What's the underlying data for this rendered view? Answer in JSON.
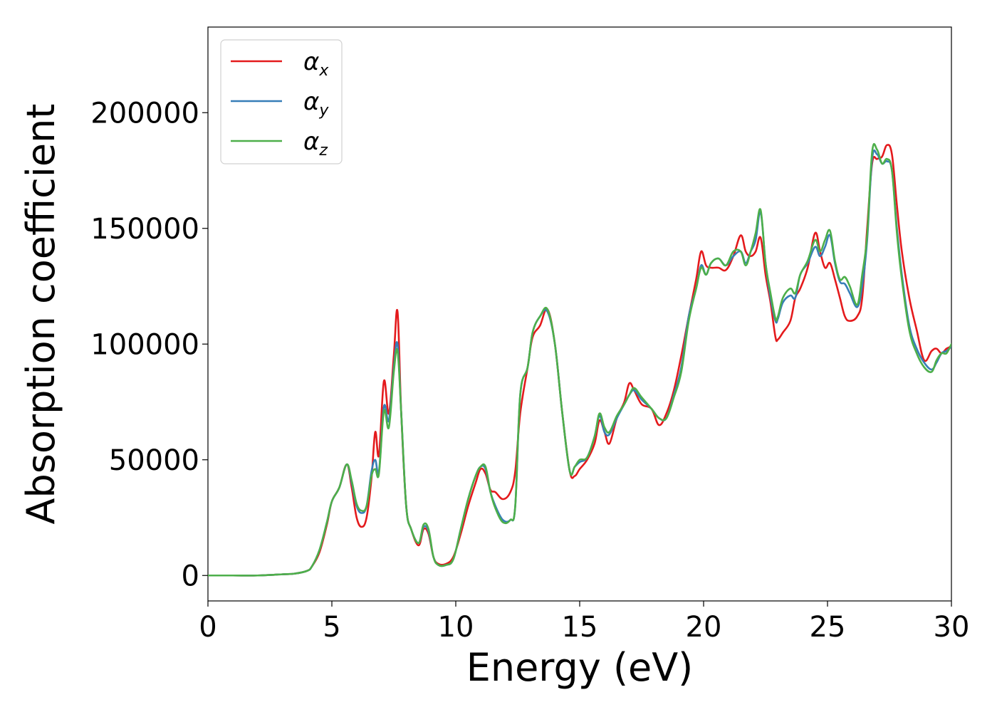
{
  "chart_data": {
    "type": "line",
    "title": "",
    "xlabel": "Energy (eV)",
    "ylabel": "Absorption coefficient",
    "xlim": [
      0,
      30
    ],
    "ylim": [
      -11000,
      237000
    ],
    "xticks": [
      0,
      5,
      10,
      15,
      20,
      25,
      30
    ],
    "xtick_labels": [
      "0",
      "5",
      "10",
      "15",
      "20",
      "25",
      "30"
    ],
    "yticks": [
      0,
      50000,
      100000,
      150000,
      200000
    ],
    "ytick_labels": [
      "0",
      "50000",
      "100000",
      "150000",
      "200000"
    ],
    "grid": false,
    "legend_position": "top-left",
    "series": [
      {
        "name": "αx",
        "symbol": "α",
        "subscript": "x",
        "color": "#e41a1c",
        "x": [
          0,
          1,
          2,
          3,
          3.5,
          4,
          4.2,
          4.5,
          4.8,
          5.0,
          5.3,
          5.6,
          5.8,
          6.0,
          6.2,
          6.4,
          6.6,
          6.75,
          6.9,
          7.1,
          7.3,
          7.5,
          7.65,
          7.8,
          8.0,
          8.2,
          8.5,
          8.7,
          8.9,
          9.1,
          9.3,
          9.6,
          9.9,
          10.2,
          10.5,
          10.8,
          11.0,
          11.2,
          11.4,
          11.6,
          11.9,
          12.2,
          12.4,
          12.6,
          12.9,
          13.1,
          13.4,
          13.7,
          14.0,
          14.3,
          14.6,
          14.8,
          15.0,
          15.3,
          15.6,
          15.8,
          16.0,
          16.2,
          16.5,
          16.8,
          17.0,
          17.2,
          17.5,
          17.9,
          18.2,
          18.5,
          18.8,
          19.1,
          19.4,
          19.7,
          19.9,
          20.1,
          20.3,
          20.6,
          20.9,
          21.2,
          21.5,
          21.7,
          21.9,
          22.1,
          22.3,
          22.5,
          22.7,
          22.9,
          23.0,
          23.2,
          23.5,
          23.7,
          23.9,
          24.2,
          24.5,
          24.7,
          24.9,
          25.1,
          25.3,
          25.5,
          25.7,
          25.9,
          26.2,
          26.4,
          26.6,
          26.8,
          27.0,
          27.2,
          27.4,
          27.6,
          27.8,
          28.0,
          28.3,
          28.6,
          28.9,
          29.2,
          29.4,
          29.6,
          29.8,
          30.0
        ],
        "y": [
          0,
          0,
          0,
          500,
          800,
          2000,
          4000,
          10000,
          22000,
          32000,
          38000,
          48000,
          38000,
          25000,
          21000,
          25000,
          42000,
          62000,
          52000,
          84000,
          70000,
          95000,
          114000,
          70000,
          30000,
          20000,
          13000,
          20000,
          18000,
          8000,
          5000,
          5000,
          8000,
          18000,
          30000,
          40000,
          46000,
          44000,
          37000,
          36000,
          33000,
          36000,
          45000,
          70000,
          90000,
          103000,
          108000,
          115000,
          100000,
          70000,
          45000,
          43000,
          46000,
          50000,
          57000,
          67000,
          62000,
          57000,
          68000,
          75000,
          83000,
          80000,
          74000,
          72000,
          65000,
          70000,
          80000,
          95000,
          112000,
          128000,
          140000,
          134000,
          133000,
          133000,
          132000,
          138000,
          147000,
          140000,
          138000,
          140000,
          146000,
          130000,
          118000,
          103000,
          102000,
          105000,
          110000,
          120000,
          124000,
          133000,
          148000,
          140000,
          133000,
          135000,
          128000,
          120000,
          112000,
          110000,
          112000,
          120000,
          150000,
          178000,
          180000,
          181000,
          186000,
          182000,
          160000,
          140000,
          120000,
          106000,
          93000,
          97000,
          98000,
          96000,
          98000,
          99000
        ]
      },
      {
        "name": "αy",
        "symbol": "α",
        "subscript": "y",
        "color": "#377eb8",
        "x": [
          0,
          1,
          2,
          3,
          3.5,
          4,
          4.2,
          4.5,
          4.8,
          5.0,
          5.3,
          5.6,
          5.8,
          6.0,
          6.2,
          6.4,
          6.6,
          6.75,
          6.9,
          7.1,
          7.3,
          7.5,
          7.65,
          7.8,
          8.0,
          8.2,
          8.5,
          8.7,
          8.9,
          9.1,
          9.3,
          9.6,
          9.9,
          10.2,
          10.5,
          10.8,
          11.0,
          11.2,
          11.4,
          11.6,
          11.9,
          12.2,
          12.4,
          12.6,
          12.9,
          13.1,
          13.4,
          13.7,
          14.0,
          14.3,
          14.6,
          14.8,
          15.0,
          15.3,
          15.6,
          15.8,
          16.0,
          16.2,
          16.5,
          16.8,
          17.0,
          17.2,
          17.5,
          17.9,
          18.2,
          18.5,
          18.8,
          19.1,
          19.4,
          19.7,
          19.9,
          20.1,
          20.3,
          20.6,
          20.9,
          21.2,
          21.5,
          21.7,
          21.9,
          22.1,
          22.3,
          22.5,
          22.7,
          22.9,
          23.0,
          23.2,
          23.5,
          23.7,
          23.9,
          24.2,
          24.5,
          24.7,
          24.9,
          25.1,
          25.3,
          25.5,
          25.7,
          25.9,
          26.2,
          26.4,
          26.6,
          26.8,
          27.0,
          27.2,
          27.4,
          27.6,
          27.8,
          28.0,
          28.3,
          28.6,
          28.9,
          29.2,
          29.4,
          29.6,
          29.8,
          30.0
        ],
        "y": [
          0,
          0,
          0,
          500,
          800,
          2000,
          4000,
          11000,
          23000,
          32000,
          38000,
          48000,
          40000,
          30000,
          27000,
          30000,
          45000,
          50000,
          45000,
          73000,
          67000,
          90000,
          100000,
          70000,
          30000,
          20000,
          14000,
          21000,
          19000,
          8000,
          4500,
          4500,
          7000,
          20000,
          33000,
          43000,
          47000,
          46000,
          36000,
          30000,
          24000,
          24000,
          30000,
          78000,
          90000,
          105000,
          112000,
          114000,
          100000,
          70000,
          45000,
          47000,
          49000,
          51000,
          60000,
          69000,
          62000,
          61000,
          68000,
          74000,
          78000,
          80000,
          76000,
          72000,
          68000,
          68000,
          78000,
          90000,
          112000,
          124000,
          134000,
          130000,
          135000,
          137000,
          134000,
          138000,
          140000,
          135000,
          140000,
          145000,
          157000,
          135000,
          120000,
          110000,
          111000,
          118000,
          121000,
          120000,
          130000,
          135000,
          142000,
          138000,
          142000,
          147000,
          135000,
          127000,
          126000,
          122000,
          116000,
          125000,
          145000,
          180000,
          182000,
          178000,
          179000,
          175000,
          150000,
          130000,
          108000,
          98000,
          92000,
          89000,
          92000,
          96000,
          97000,
          99000
        ]
      },
      {
        "name": "αz",
        "symbol": "α",
        "subscript": "z",
        "color": "#4daf4a",
        "x": [
          0,
          1,
          2,
          3,
          3.5,
          4,
          4.2,
          4.5,
          4.8,
          5.0,
          5.3,
          5.6,
          5.8,
          6.0,
          6.2,
          6.4,
          6.6,
          6.75,
          6.9,
          7.1,
          7.3,
          7.5,
          7.65,
          7.8,
          8.0,
          8.2,
          8.5,
          8.7,
          8.9,
          9.1,
          9.3,
          9.6,
          9.9,
          10.2,
          10.5,
          10.8,
          11.0,
          11.2,
          11.4,
          11.6,
          11.9,
          12.2,
          12.4,
          12.6,
          12.9,
          13.1,
          13.4,
          13.7,
          14.0,
          14.3,
          14.6,
          14.8,
          15.0,
          15.3,
          15.6,
          15.8,
          16.0,
          16.2,
          16.5,
          16.8,
          17.0,
          17.2,
          17.5,
          17.9,
          18.2,
          18.5,
          18.8,
          19.1,
          19.4,
          19.7,
          19.9,
          20.1,
          20.3,
          20.6,
          20.9,
          21.2,
          21.5,
          21.7,
          21.9,
          22.1,
          22.3,
          22.5,
          22.7,
          22.9,
          23.0,
          23.2,
          23.5,
          23.7,
          23.9,
          24.2,
          24.5,
          24.7,
          24.9,
          25.1,
          25.3,
          25.5,
          25.7,
          25.9,
          26.2,
          26.4,
          26.6,
          26.8,
          27.0,
          27.2,
          27.4,
          27.6,
          27.8,
          28.0,
          28.3,
          28.6,
          28.9,
          29.2,
          29.4,
          29.6,
          29.8,
          30.0
        ],
        "y": [
          0,
          0,
          0,
          500,
          800,
          2000,
          4000,
          11000,
          23000,
          32000,
          38000,
          48000,
          41000,
          31000,
          28000,
          30000,
          43000,
          46000,
          44000,
          71000,
          64000,
          88000,
          97000,
          70000,
          30000,
          20000,
          14000,
          22000,
          20000,
          8000,
          4500,
          4500,
          7000,
          20000,
          33000,
          43000,
          47000,
          47000,
          36000,
          29000,
          23000,
          24000,
          30000,
          78000,
          90000,
          105000,
          112000,
          115000,
          100000,
          70000,
          45000,
          47000,
          50000,
          51000,
          60000,
          70000,
          64000,
          62000,
          69000,
          74000,
          78000,
          81000,
          77000,
          72000,
          68000,
          68000,
          77000,
          88000,
          110000,
          124000,
          133000,
          130000,
          135000,
          137000,
          134000,
          140000,
          140000,
          134000,
          140000,
          148000,
          158000,
          135000,
          122000,
          111000,
          112000,
          120000,
          124000,
          122000,
          130000,
          136000,
          145000,
          140000,
          145000,
          149000,
          136000,
          128000,
          129000,
          125000,
          117000,
          130000,
          147000,
          183000,
          184000,
          178000,
          180000,
          175000,
          148000,
          128000,
          106000,
          96000,
          90000,
          88000,
          93000,
          96000,
          96000,
          100000
        ]
      }
    ]
  }
}
